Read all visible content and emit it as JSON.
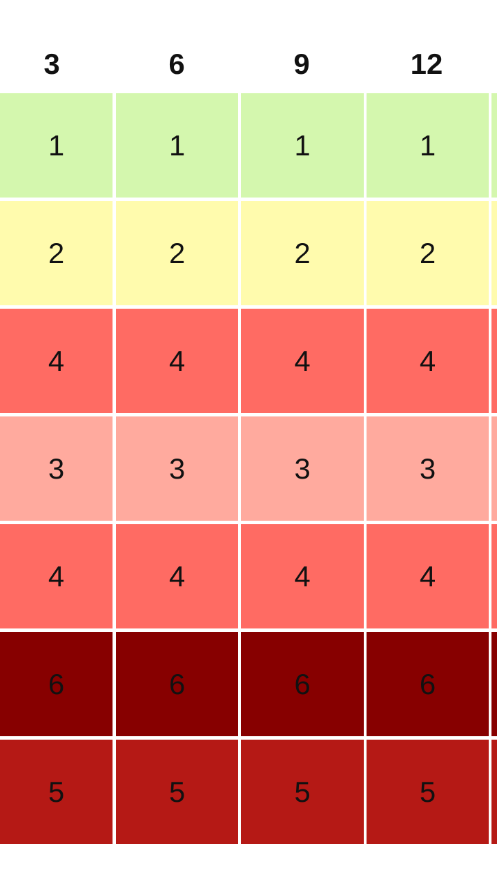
{
  "chart_data": {
    "type": "heatmap",
    "title": "",
    "xlabel": "",
    "ylabel": "",
    "columns": [
      "3",
      "6",
      "9",
      "12"
    ],
    "rows": [
      {
        "values": [
          1,
          1,
          1,
          1
        ],
        "color": "#d4f7ae"
      },
      {
        "values": [
          2,
          2,
          2,
          2
        ],
        "color": "#fffbad"
      },
      {
        "values": [
          4,
          4,
          4,
          4
        ],
        "color": "#ff6b63"
      },
      {
        "values": [
          3,
          3,
          3,
          3
        ],
        "color": "#ffaa9e"
      },
      {
        "values": [
          4,
          4,
          4,
          4
        ],
        "color": "#ff6b63"
      },
      {
        "values": [
          6,
          6,
          6,
          6
        ],
        "color": "#870000"
      },
      {
        "values": [
          5,
          5,
          5,
          5
        ],
        "color": "#b51915"
      }
    ],
    "color_scale": {
      "low": "#d4f7ae",
      "high": "#870000"
    },
    "grid": true,
    "legend": "none"
  }
}
